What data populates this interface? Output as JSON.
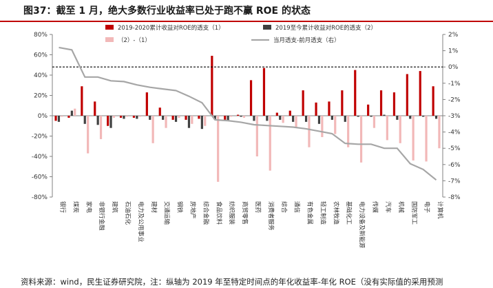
{
  "title": "图37：截至 1 月，绝大多数行业收益率已处于跑不赢 ROE 的状态",
  "footer": "资料来源：wind，民生证券研究院，注：纵轴为 2019 年至特定时间点的年化收益率-年化 ROE（没有实际值的采用预测",
  "colors": {
    "series1": "#c00000",
    "series2": "#404040",
    "series3": "#f2b8b8",
    "series4": "#a6a6a6",
    "ref_line": "#000000"
  },
  "chart_data": {
    "type": "bar",
    "categories": [
      "银行",
      "煤炭",
      "家电",
      "非银行金融",
      "建筑",
      "石油石化",
      "电力及公用事业",
      "建材",
      "交通运输",
      "钢铁",
      "房地产",
      "综合金融",
      "食品饮料",
      "纺织服装",
      "商贸零售",
      "医药",
      "消费者服务",
      "综合",
      "通信",
      "有色金属",
      "轻工制造",
      "农林牧渔",
      "基础化工",
      "电力设备及新能源",
      "传媒",
      "汽车",
      "机械",
      "国防军工",
      "电子",
      "计算机"
    ],
    "series": [
      {
        "name": "2019-2020累计收益对ROE的透支（1）",
        "axis": "left",
        "kind": "bar",
        "values": [
          -5,
          -2,
          29,
          14,
          -10,
          -2,
          -2,
          23,
          8,
          -4,
          -4,
          -3,
          59,
          -4,
          1,
          35,
          47,
          3,
          5,
          25,
          13,
          14,
          25,
          45,
          11,
          25,
          23,
          41,
          44,
          29
        ]
      },
      {
        "name": "2019至今累计收益对ROE的透支（2）",
        "axis": "left",
        "kind": "bar",
        "values": [
          -6,
          5,
          -8,
          -9,
          -12,
          -3,
          -3,
          -4,
          -4,
          -6,
          -12,
          -13,
          -4,
          -5,
          -1,
          -5,
          -5,
          -4,
          -6,
          -6,
          -8,
          -4,
          -6,
          -1,
          -1,
          1,
          -4,
          -3,
          -1,
          -3
        ]
      },
      {
        "name": "（2）-（1）",
        "axis": "left",
        "kind": "bar",
        "values": [
          -1,
          7,
          -37,
          -23,
          -2,
          -1,
          -1,
          -27,
          -12,
          -2,
          -8,
          -10,
          -65,
          -1,
          -2,
          -40,
          -54,
          -7,
          -11,
          -31,
          -21,
          -18,
          -31,
          -46,
          -12,
          -24,
          -27,
          -44,
          -45,
          -32
        ]
      },
      {
        "name": "当月透支-前月透支（右）",
        "axis": "right",
        "kind": "line",
        "values": [
          1.2,
          1.05,
          -0.62,
          -0.62,
          -0.85,
          -0.9,
          -1.1,
          -1.25,
          -1.35,
          -1.45,
          -1.8,
          -2.2,
          -3.25,
          -3.3,
          -3.4,
          -3.55,
          -3.6,
          -3.65,
          -3.7,
          -3.8,
          -3.95,
          -4.1,
          -4.7,
          -4.75,
          -4.75,
          -5.0,
          -5.0,
          -5.95,
          -6.3,
          -6.95
        ]
      }
    ],
    "reference_line": {
      "axis": "right",
      "value": 0,
      "style": "dashed"
    },
    "ylim_left": [
      -80,
      80
    ],
    "yticks_left": [
      "80%",
      "60%",
      "40%",
      "20%",
      "0%",
      "-20%",
      "-40%",
      "-60%",
      "-80%"
    ],
    "ylim_right": [
      -8,
      2
    ],
    "yticks_right": [
      "2%",
      "1%",
      "0%",
      "-1%",
      "-2%",
      "-3%",
      "-4%",
      "-5%",
      "-6%",
      "-7%",
      "-8%"
    ],
    "legend_position": "top",
    "grid": false
  }
}
